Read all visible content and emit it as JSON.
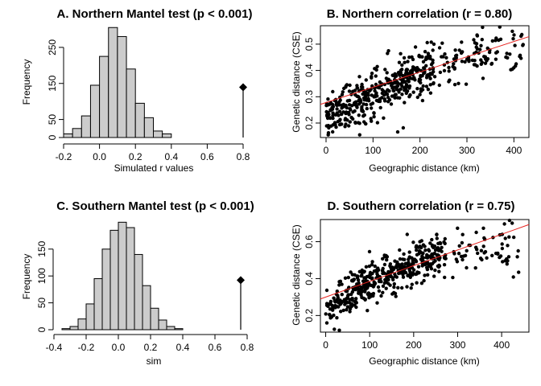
{
  "chart_data": [
    {
      "id": "A",
      "type": "bar",
      "title": "A. Northern Mantel test (p < 0.001)",
      "xlabel": "Simulated r values",
      "ylabel": "Frequency",
      "xlim": [
        -0.2,
        0.8
      ],
      "xticks": [
        -0.2,
        0,
        0.2,
        0.4,
        0.6,
        0.8
      ],
      "xtick_labels": [
        "-0.2",
        "0.0",
        "0.2",
        "0.4",
        "0.6",
        "0.8"
      ],
      "ylim": [
        0,
        310
      ],
      "yticks": [
        0,
        50,
        150,
        250
      ],
      "bin_width": 0.05,
      "bin_start": -0.2,
      "values": [
        10,
        25,
        60,
        145,
        225,
        305,
        280,
        190,
        95,
        55,
        18,
        10
      ],
      "observed": 0.8
    },
    {
      "id": "B",
      "type": "scatter",
      "title": "B. Northern correlation (r = 0.80)",
      "xlabel": "Geographic distance (km)",
      "ylabel": "Genetic distance (CSE)",
      "xlim": [
        -12,
        432
      ],
      "ylim": [
        0.145,
        0.57
      ],
      "xticks": [
        0,
        100,
        200,
        300,
        400
      ],
      "yticks": [
        0.2,
        0.3,
        0.4,
        0.5
      ],
      "ytick_labels": [
        "0.2",
        "0.3",
        "0.4",
        "0.5"
      ],
      "n_points": 520,
      "fit": {
        "intercept": 0.278,
        "slope": 0.00058
      },
      "series": [
        {
          "x_range": [
            0,
            230
          ],
          "y_pred": {
            "a": 0.225,
            "b": 0.00098,
            "c": 8.4e-07
          },
          "y_sd": 0.045,
          "share": 0.8
        },
        {
          "x_range": [
            230,
            420
          ],
          "y_pred": {
            "a": 0.225,
            "b": 0.00098,
            "c": 8.4e-07
          },
          "y_sd": 0.045,
          "share": 0.2
        }
      ]
    },
    {
      "id": "C",
      "type": "bar",
      "title": "C. Southern Mantel test (p < 0.001)",
      "xlabel": "sim",
      "ylabel": "Frequency",
      "xlim": [
        -0.4,
        0.8
      ],
      "xticks": [
        -0.4,
        -0.2,
        0,
        0.2,
        0.4,
        0.6,
        0.8
      ],
      "xtick_labels": [
        "-0.4",
        "-0.2",
        "0.0",
        "0.2",
        "0.4",
        "0.6",
        "0.8"
      ],
      "ylim": [
        0,
        205
      ],
      "yticks": [
        0,
        50,
        100,
        150
      ],
      "bin_width": 0.05,
      "bin_start": -0.35,
      "values": [
        2,
        6,
        20,
        48,
        95,
        150,
        185,
        200,
        190,
        140,
        82,
        40,
        18,
        6,
        2
      ],
      "observed": 0.76
    },
    {
      "id": "D",
      "type": "scatter",
      "title": "D. Southern correlation (r = 0.75)",
      "xlabel": "Geographic distance (km)",
      "ylabel": "Genetic distance (CSE)",
      "xlim": [
        -12,
        462
      ],
      "ylim": [
        0.11,
        0.72
      ],
      "xticks": [
        0,
        100,
        200,
        300,
        400
      ],
      "yticks": [
        0.2,
        0.4,
        0.6
      ],
      "ytick_labels": [
        "0.2",
        "0.4",
        "0.6"
      ],
      "n_points": 520,
      "fit": {
        "intercept": 0.3,
        "slope": 0.00085
      },
      "series": [
        {
          "x_range": [
            0,
            260
          ],
          "y_pred": {
            "a": 0.22,
            "b": 0.0018,
            "c": 2.4e-06
          },
          "y_sd": 0.055,
          "share": 0.85
        },
        {
          "x_range": [
            260,
            440
          ],
          "y_pred": {
            "a": 0.22,
            "b": 0.0018,
            "c": 2.4e-06
          },
          "y_sd": 0.055,
          "share": 0.15
        }
      ]
    }
  ]
}
